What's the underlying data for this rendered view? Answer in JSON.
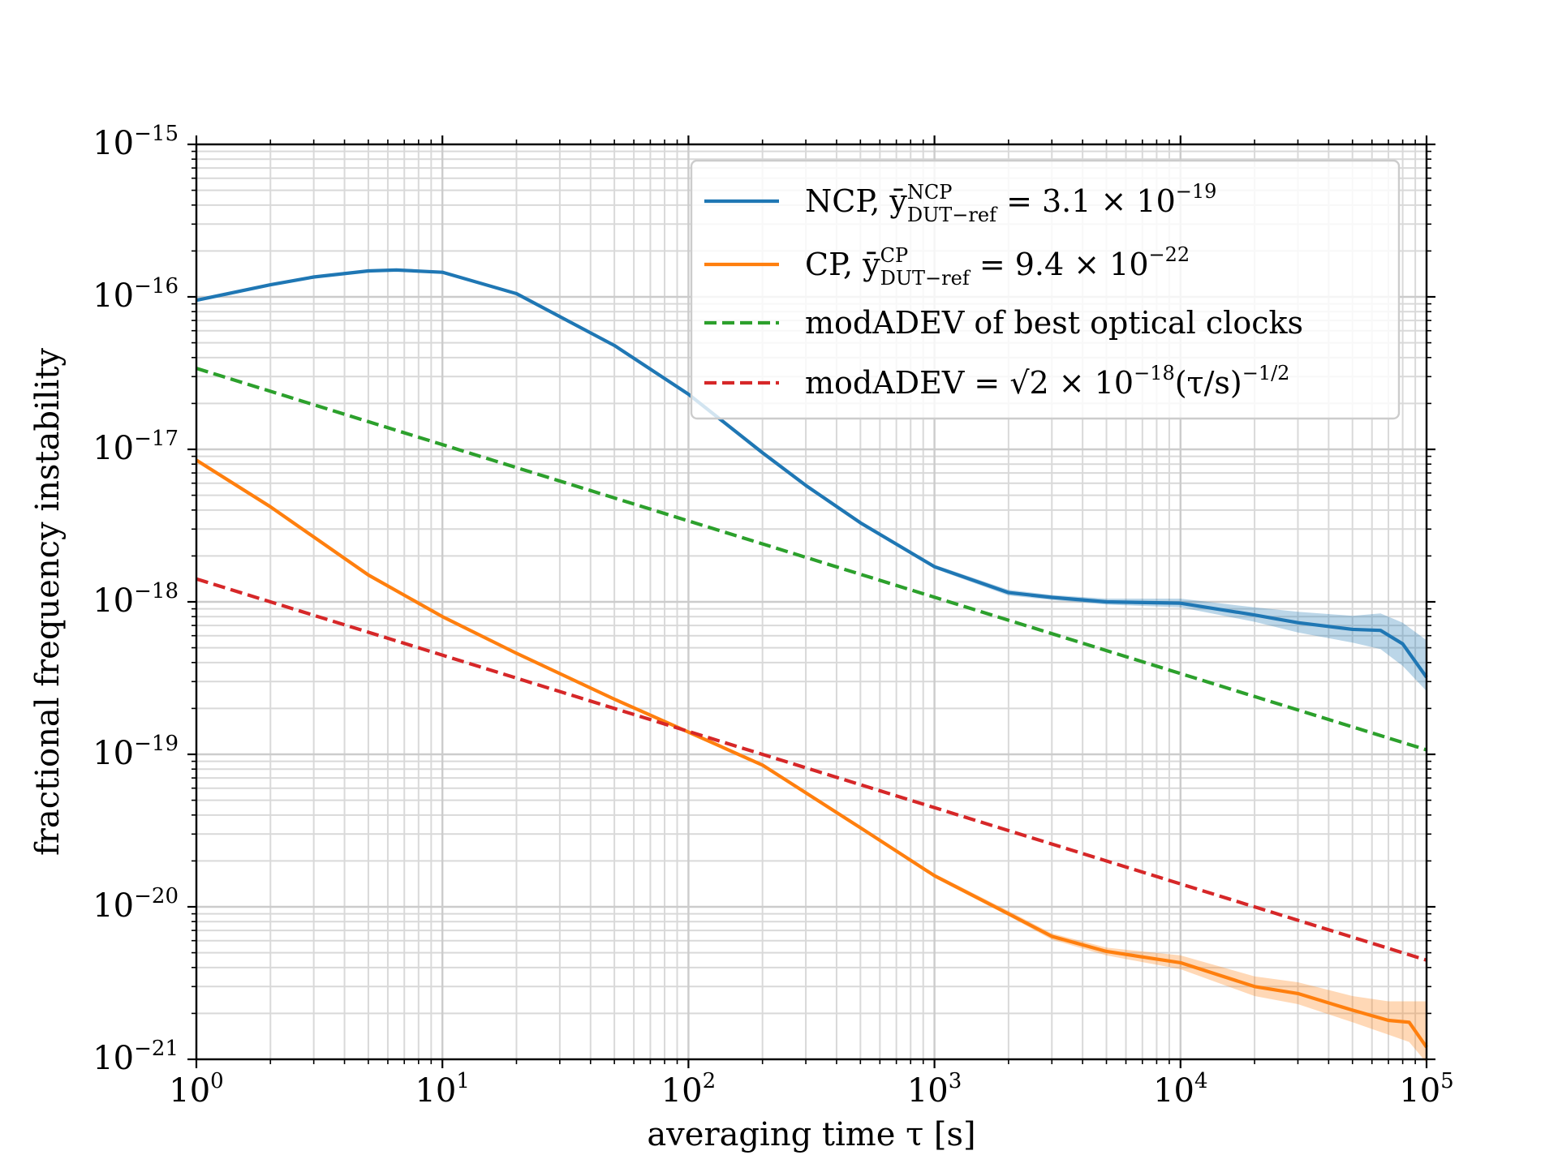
{
  "chart_data": {
    "type": "line",
    "xscale": "log",
    "yscale": "log",
    "xlim": [
      1,
      100000
    ],
    "ylim": [
      1e-21,
      1e-15
    ],
    "xlabel": "averaging time τ [s]",
    "ylabel": "fractional frequency instability",
    "grid": "major and minor",
    "legend_position": "upper-right",
    "x_ticks": [
      {
        "value": 1,
        "base": "10",
        "exp": "0"
      },
      {
        "value": 10,
        "base": "10",
        "exp": "1"
      },
      {
        "value": 100,
        "base": "10",
        "exp": "2"
      },
      {
        "value": 1000,
        "base": "10",
        "exp": "3"
      },
      {
        "value": 10000,
        "base": "10",
        "exp": "4"
      },
      {
        "value": 100000,
        "base": "10",
        "exp": "5"
      }
    ],
    "y_ticks": [
      {
        "value": 1e-15,
        "base": "10",
        "exp": "−15"
      },
      {
        "value": 1e-16,
        "base": "10",
        "exp": "−16"
      },
      {
        "value": 1e-17,
        "base": "10",
        "exp": "−17"
      },
      {
        "value": 1e-18,
        "base": "10",
        "exp": "−18"
      },
      {
        "value": 1e-19,
        "base": "10",
        "exp": "−19"
      },
      {
        "value": 1e-20,
        "base": "10",
        "exp": "−20"
      },
      {
        "value": 1e-21,
        "base": "10",
        "exp": "−21"
      }
    ],
    "series": [
      {
        "name": "NCP",
        "legend": {
          "prefix": "NCP, ȳ",
          "sup": "NCP",
          "sub": "DUT−ref",
          "suffix": " = 3.1 × 10",
          "exp": "−19"
        },
        "color": "#1f77b4",
        "style": "solid",
        "tau": [
          1,
          2,
          3,
          5,
          6.5,
          10,
          20,
          50,
          100,
          200,
          300,
          500,
          1000,
          2000,
          3000,
          5000,
          10000,
          20000,
          30000,
          50000,
          65000,
          80000,
          100000
        ],
        "values": [
          9.5e-17,
          1.2e-16,
          1.35e-16,
          1.48e-16,
          1.5e-16,
          1.45e-16,
          1.05e-16,
          4.8e-17,
          2.3e-17,
          9.5e-18,
          5.8e-18,
          3.3e-18,
          1.7e-18,
          1.15e-18,
          1.07e-18,
          1e-18,
          9.8e-19,
          8.2e-19,
          7.3e-19,
          6.6e-19,
          6.5e-19,
          5.3e-19,
          3.2e-19
        ],
        "band_lower": [
          9.5e-17,
          1.2e-16,
          1.35e-16,
          1.48e-16,
          1.5e-16,
          1.45e-16,
          1.05e-16,
          4.8e-17,
          2.3e-17,
          9.5e-18,
          5.8e-18,
          3.3e-18,
          1.65e-18,
          1.1e-18,
          1.03e-18,
          9.6e-19,
          9.2e-19,
          7.4e-19,
          6.3e-19,
          5.4e-19,
          4.9e-19,
          3.8e-19,
          2.6e-19
        ],
        "band_upper": [
          9.5e-17,
          1.2e-16,
          1.35e-16,
          1.48e-16,
          1.5e-16,
          1.45e-16,
          1.05e-16,
          4.8e-17,
          2.3e-17,
          9.5e-18,
          5.8e-18,
          3.3e-18,
          1.75e-18,
          1.2e-18,
          1.11e-18,
          1.05e-18,
          1.05e-18,
          9.2e-19,
          8.6e-19,
          8.1e-19,
          8.4e-19,
          7.3e-19,
          5.6e-19
        ]
      },
      {
        "name": "CP",
        "legend": {
          "prefix": "CP, ȳ",
          "sup": "CP",
          "sub": "DUT−ref",
          "suffix": " = 9.4 × 10",
          "exp": "−22"
        },
        "color": "#ff7f0e",
        "style": "solid",
        "tau": [
          1,
          2,
          5,
          10,
          20,
          50,
          100,
          200,
          500,
          1000,
          2000,
          3000,
          5000,
          10000,
          20000,
          30000,
          50000,
          70000,
          85000,
          100000
        ],
        "values": [
          8.5e-18,
          4.2e-18,
          1.5e-18,
          8e-19,
          4.6e-19,
          2.3e-19,
          1.4e-19,
          8.5e-20,
          3.3e-20,
          1.6e-20,
          9e-21,
          6.4e-21,
          5.1e-21,
          4.3e-21,
          3e-21,
          2.7e-21,
          2.1e-21,
          1.8e-21,
          1.75e-21,
          1.2e-21
        ],
        "band_lower": [
          8.5e-18,
          4.2e-18,
          1.5e-18,
          8e-19,
          4.6e-19,
          2.3e-19,
          1.4e-19,
          8.5e-20,
          3.3e-20,
          1.55e-20,
          8.7e-21,
          6.1e-21,
          4.8e-21,
          3.9e-21,
          2.6e-21,
          2.3e-21,
          1.75e-21,
          1.45e-21,
          1.3e-21,
          9.5e-22
        ],
        "band_upper": [
          8.5e-18,
          4.2e-18,
          1.5e-18,
          8e-19,
          4.6e-19,
          2.3e-19,
          1.4e-19,
          8.5e-20,
          3.3e-20,
          1.65e-20,
          9.4e-21,
          6.7e-21,
          5.4e-21,
          4.8e-21,
          3.5e-21,
          3.2e-21,
          2.6e-21,
          2.4e-21,
          2.4e-21,
          2.4e-21
        ]
      },
      {
        "name": "modADEV of best optical clocks",
        "legend": {
          "text": "modADEV of best optical clocks"
        },
        "color": "#2ca02c",
        "style": "dashed",
        "tau": [
          1,
          100000
        ],
        "values": [
          3.4e-17,
          1.07e-19
        ]
      },
      {
        "name": "modADEV = √2 × 10^−18 (τ/s)^−1/2",
        "legend": {
          "prefix": "modADEV = ",
          "root": "√2",
          "suffix": " × 10",
          "exp": "−18",
          "tail": "(τ/s)",
          "tail_exp": "−1/2"
        },
        "color": "#d62728",
        "style": "dashed",
        "tau": [
          1,
          100000
        ],
        "values": [
          1.414e-18,
          4.47e-21
        ]
      }
    ]
  }
}
